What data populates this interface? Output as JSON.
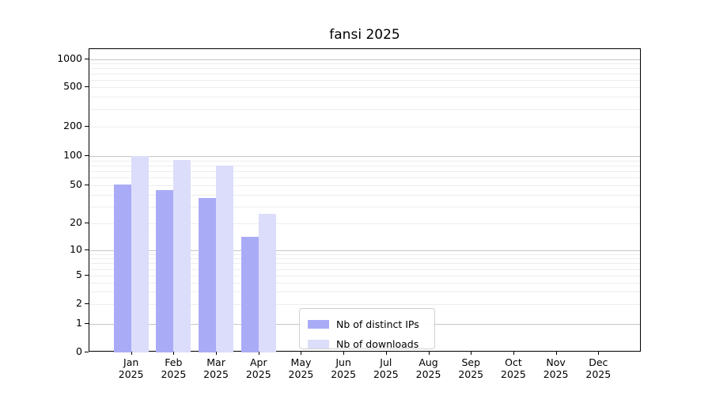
{
  "title": "fansi 2025",
  "chart_data": {
    "type": "bar",
    "title": "fansi 2025",
    "x_tick_months": [
      "Jan",
      "Feb",
      "Mar",
      "Apr",
      "May",
      "Jun",
      "Jul",
      "Aug",
      "Sep",
      "Oct",
      "Nov",
      "Dec"
    ],
    "x_tick_year": "2025",
    "categories": [
      "Jan 2025",
      "Feb 2025",
      "Mar 2025",
      "Apr 2025",
      "May 2025",
      "Jun 2025",
      "Jul 2025",
      "Aug 2025",
      "Sep 2025",
      "Oct 2025",
      "Nov 2025",
      "Dec 2025"
    ],
    "series": [
      {
        "name": "Nb of distinct IPs",
        "color": "#aaabf6",
        "values": [
          51,
          45,
          37,
          14,
          0,
          0,
          0,
          0,
          0,
          0,
          0,
          0
        ]
      },
      {
        "name": "Nb of downloads",
        "color": "#dcddfa",
        "values": [
          100,
          91,
          80,
          25,
          0,
          0,
          0,
          0,
          0,
          0,
          0,
          0
        ]
      }
    ],
    "y_axis": {
      "tick_labels": [
        "0",
        "1",
        "2",
        "5",
        "10",
        "20",
        "50",
        "100",
        "200",
        "500",
        "1000"
      ],
      "tick_values": [
        0,
        1,
        2,
        5,
        10,
        20,
        50,
        100,
        200,
        500,
        1000
      ],
      "scale": "log-like with zero baseline",
      "range": [
        0,
        1300
      ]
    },
    "grid": "on (log minor + decade major)",
    "legend_position": "inside, lower center-left",
    "colors": {
      "axis": "#000000",
      "major_grid": "#c6c6c6",
      "minor_grid": "#ededed",
      "background": "#ffffff"
    }
  }
}
